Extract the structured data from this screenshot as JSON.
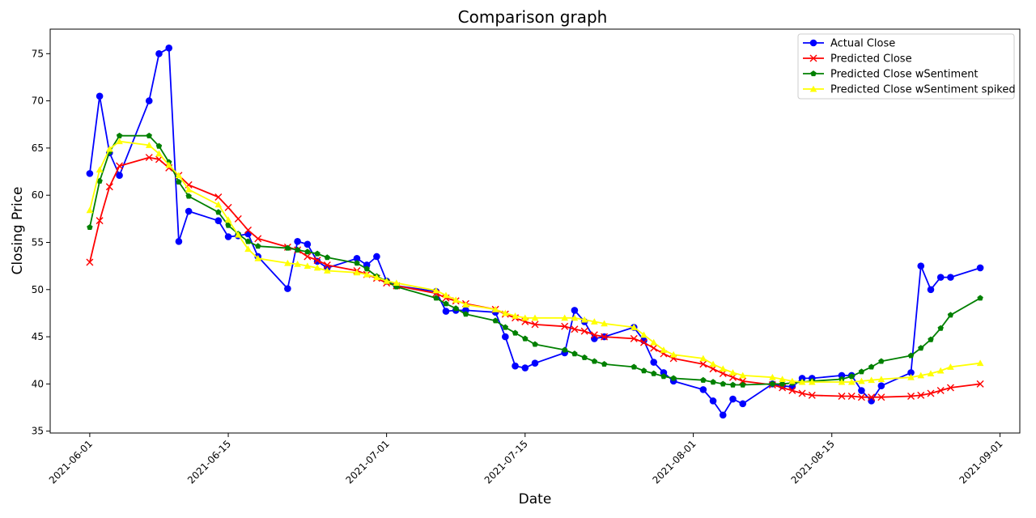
{
  "chart_data": {
    "type": "line",
    "title": "Comparison graph",
    "xlabel": "Date",
    "ylabel": "Closing Price",
    "xlim": [
      "2021-05-28",
      "2021-09-03"
    ],
    "ylim": [
      34.8,
      77.6
    ],
    "x_ticks": [
      "2021-06-01",
      "2021-06-15",
      "2021-07-01",
      "2021-07-15",
      "2021-08-01",
      "2021-08-15",
      "2021-09-01"
    ],
    "y_ticks": [
      35,
      40,
      45,
      50,
      55,
      60,
      65,
      70,
      75
    ],
    "grid": false,
    "legend_position": "top-right",
    "x": [
      "2021-06-01",
      "2021-06-02",
      "2021-06-03",
      "2021-06-04",
      "2021-06-07",
      "2021-06-08",
      "2021-06-09",
      "2021-06-10",
      "2021-06-11",
      "2021-06-14",
      "2021-06-15",
      "2021-06-16",
      "2021-06-17",
      "2021-06-18",
      "2021-06-21",
      "2021-06-22",
      "2021-06-23",
      "2021-06-24",
      "2021-06-25",
      "2021-06-28",
      "2021-06-29",
      "2021-06-30",
      "2021-07-01",
      "2021-07-02",
      "2021-07-06",
      "2021-07-07",
      "2021-07-08",
      "2021-07-09",
      "2021-07-12",
      "2021-07-13",
      "2021-07-14",
      "2021-07-15",
      "2021-07-16",
      "2021-07-19",
      "2021-07-20",
      "2021-07-21",
      "2021-07-22",
      "2021-07-23",
      "2021-07-26",
      "2021-07-27",
      "2021-07-28",
      "2021-07-29",
      "2021-07-30",
      "2021-08-02",
      "2021-08-03",
      "2021-08-04",
      "2021-08-05",
      "2021-08-06",
      "2021-08-09",
      "2021-08-10",
      "2021-08-11",
      "2021-08-12",
      "2021-08-13",
      "2021-08-16",
      "2021-08-17",
      "2021-08-18",
      "2021-08-19",
      "2021-08-20",
      "2021-08-23",
      "2021-08-24",
      "2021-08-25",
      "2021-08-26",
      "2021-08-27",
      "2021-08-30"
    ],
    "series": [
      {
        "name": "Actual Close",
        "color": "#0000ff",
        "marker": "circle",
        "values": [
          62.3,
          70.5,
          64.5,
          62.1,
          70.0,
          75.0,
          75.6,
          55.1,
          58.3,
          57.3,
          55.6,
          55.7,
          55.9,
          53.5,
          50.1,
          55.1,
          54.8,
          53.0,
          52.3,
          53.3,
          52.6,
          53.5,
          50.9,
          50.4,
          49.8,
          47.7,
          47.8,
          47.8,
          47.6,
          45.0,
          41.9,
          41.7,
          42.2,
          43.3,
          47.8,
          46.6,
          44.8,
          45.0,
          46.0,
          44.6,
          42.3,
          41.2,
          40.3,
          39.4,
          38.2,
          36.7,
          38.4,
          37.9,
          40.0,
          39.8,
          39.7,
          40.6,
          40.6,
          40.9,
          40.9,
          39.3,
          38.2,
          39.8,
          41.2,
          52.5,
          50.0,
          51.3,
          51.3,
          52.3
        ]
      },
      {
        "name": "Predicted Close",
        "color": "#ff0000",
        "marker": "x",
        "values": [
          52.9,
          57.3,
          60.9,
          63.1,
          64.0,
          63.8,
          62.9,
          62.1,
          61.1,
          59.8,
          58.7,
          57.5,
          56.3,
          55.4,
          54.5,
          54.2,
          53.5,
          53.1,
          52.6,
          52.0,
          51.6,
          51.2,
          50.7,
          50.4,
          49.6,
          49.1,
          48.8,
          48.5,
          47.9,
          47.4,
          47.0,
          46.6,
          46.3,
          46.1,
          45.8,
          45.6,
          45.2,
          45.0,
          44.8,
          44.4,
          43.8,
          43.2,
          42.7,
          42.1,
          41.6,
          41.1,
          40.7,
          40.3,
          39.9,
          39.6,
          39.3,
          39.0,
          38.8,
          38.7,
          38.7,
          38.6,
          38.6,
          38.6,
          38.7,
          38.8,
          39.0,
          39.3,
          39.6,
          40.0
        ]
      },
      {
        "name": "Predicted Close wSentiment",
        "color": "#008000",
        "marker": "pentagon",
        "values": [
          56.6,
          61.5,
          64.6,
          66.3,
          66.3,
          65.2,
          63.5,
          61.4,
          59.9,
          58.2,
          56.8,
          55.9,
          55.1,
          54.6,
          54.4,
          54.2,
          54.0,
          53.8,
          53.4,
          52.8,
          52.2,
          51.4,
          50.9,
          50.3,
          49.1,
          48.5,
          48.0,
          47.4,
          46.7,
          46.0,
          45.4,
          44.8,
          44.2,
          43.6,
          43.2,
          42.8,
          42.4,
          42.1,
          41.8,
          41.4,
          41.1,
          40.8,
          40.6,
          40.4,
          40.2,
          40.0,
          39.9,
          39.9,
          40.0,
          40.0,
          40.1,
          40.2,
          40.3,
          40.5,
          40.8,
          41.3,
          41.8,
          42.4,
          43.0,
          43.8,
          44.7,
          45.9,
          47.3,
          49.1
        ]
      },
      {
        "name": "Predicted Close wSentiment spiked",
        "color": "#ffff00",
        "marker": "triangle",
        "values": [
          58.4,
          62.7,
          64.9,
          65.7,
          65.3,
          64.4,
          63.2,
          62.1,
          60.6,
          59.0,
          57.4,
          55.8,
          54.3,
          53.3,
          52.8,
          52.7,
          52.5,
          52.3,
          52.0,
          51.8,
          51.6,
          51.3,
          50.9,
          50.7,
          49.9,
          49.4,
          48.9,
          48.4,
          47.9,
          47.5,
          47.2,
          47.0,
          47.0,
          47.0,
          47.0,
          46.8,
          46.6,
          46.4,
          46.0,
          45.2,
          44.4,
          43.6,
          43.1,
          42.7,
          42.1,
          41.6,
          41.2,
          40.9,
          40.7,
          40.5,
          40.3,
          40.2,
          40.2,
          40.2,
          40.2,
          40.3,
          40.4,
          40.5,
          40.7,
          40.9,
          41.1,
          41.4,
          41.8,
          42.2
        ]
      }
    ]
  }
}
